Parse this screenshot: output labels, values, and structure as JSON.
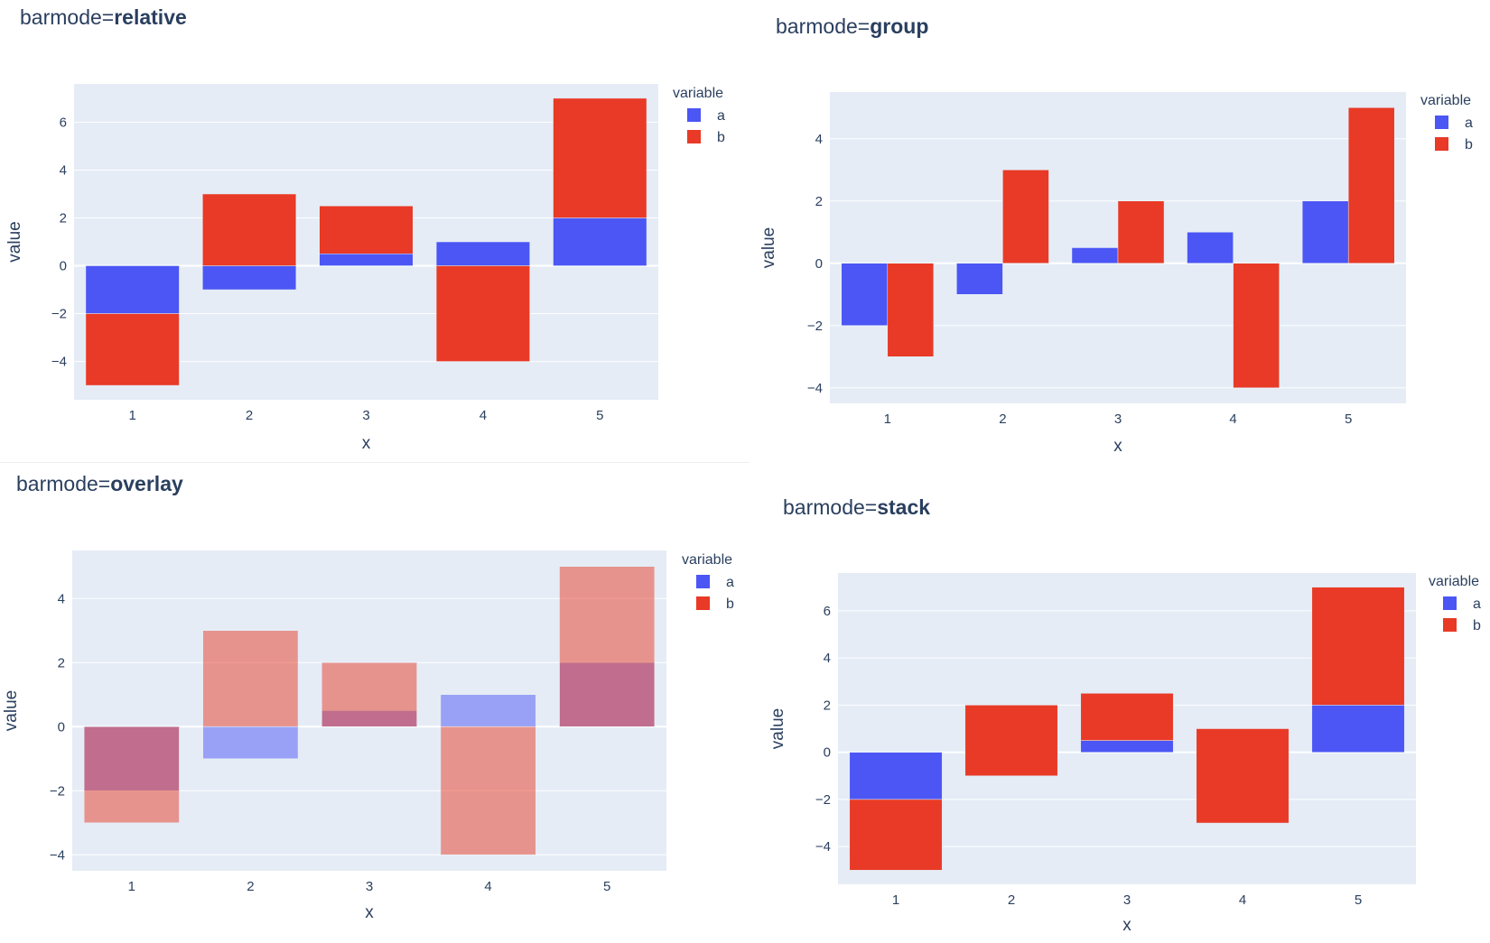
{
  "colors": {
    "a": "#4b56f5",
    "b": "#e83a26",
    "plot_bg": "#e5ecf6",
    "grid": "#ffffff"
  },
  "chart_data": [
    {
      "type": "bar",
      "barmode": "relative",
      "title_prefix": "barmode=",
      "title_mode": "relative",
      "xlabel": "x",
      "ylabel": "value",
      "categories": [
        "1",
        "2",
        "3",
        "4",
        "5"
      ],
      "ylim": [
        -5.6,
        7.6
      ],
      "yticks": [
        -4,
        -2,
        0,
        2,
        4,
        6
      ],
      "ytick_labels": [
        "−4",
        "−2",
        "0",
        "2",
        "4",
        "6"
      ],
      "legend_title": "variable",
      "legend_position": "top-right",
      "series": [
        {
          "name": "a",
          "values": [
            -2,
            -1,
            0.5,
            1,
            2
          ]
        },
        {
          "name": "b",
          "values": [
            -3,
            3,
            2,
            -4,
            5
          ]
        }
      ]
    },
    {
      "type": "bar",
      "barmode": "group",
      "title_prefix": "barmode=",
      "title_mode": "group",
      "xlabel": "x",
      "ylabel": "value",
      "categories": [
        "1",
        "2",
        "3",
        "4",
        "5"
      ],
      "ylim": [
        -4.5,
        5.5
      ],
      "yticks": [
        -4,
        -2,
        0,
        2,
        4
      ],
      "ytick_labels": [
        "−4",
        "−2",
        "0",
        "2",
        "4"
      ],
      "legend_title": "variable",
      "legend_position": "top-right",
      "series": [
        {
          "name": "a",
          "values": [
            -2,
            -1,
            0.5,
            1,
            2
          ]
        },
        {
          "name": "b",
          "values": [
            -3,
            3,
            2,
            -4,
            5
          ]
        }
      ]
    },
    {
      "type": "bar",
      "barmode": "overlay",
      "title_prefix": "barmode=",
      "title_mode": "overlay",
      "xlabel": "x",
      "ylabel": "value",
      "categories": [
        "1",
        "2",
        "3",
        "4",
        "5"
      ],
      "ylim": [
        -4.5,
        5.5
      ],
      "yticks": [
        -4,
        -2,
        0,
        2,
        4
      ],
      "ytick_labels": [
        "−4",
        "−2",
        "0",
        "2",
        "4"
      ],
      "legend_title": "variable",
      "legend_position": "top-right",
      "series": [
        {
          "name": "a",
          "values": [
            -2,
            -1,
            0.5,
            1,
            2
          ]
        },
        {
          "name": "b",
          "values": [
            -3,
            3,
            2,
            -4,
            5
          ]
        }
      ]
    },
    {
      "type": "bar",
      "barmode": "stack",
      "title_prefix": "barmode=",
      "title_mode": "stack",
      "xlabel": "x",
      "ylabel": "value",
      "categories": [
        "1",
        "2",
        "3",
        "4",
        "5"
      ],
      "ylim": [
        -5.6,
        7.6
      ],
      "yticks": [
        -4,
        -2,
        0,
        2,
        4,
        6
      ],
      "ytick_labels": [
        "−4",
        "−2",
        "0",
        "2",
        "4",
        "6"
      ],
      "legend_title": "variable",
      "legend_position": "top-right",
      "series": [
        {
          "name": "a",
          "values": [
            -2,
            -1,
            0.5,
            1,
            2
          ]
        },
        {
          "name": "b",
          "values": [
            -3,
            3,
            2,
            -4,
            5
          ]
        }
      ]
    }
  ]
}
